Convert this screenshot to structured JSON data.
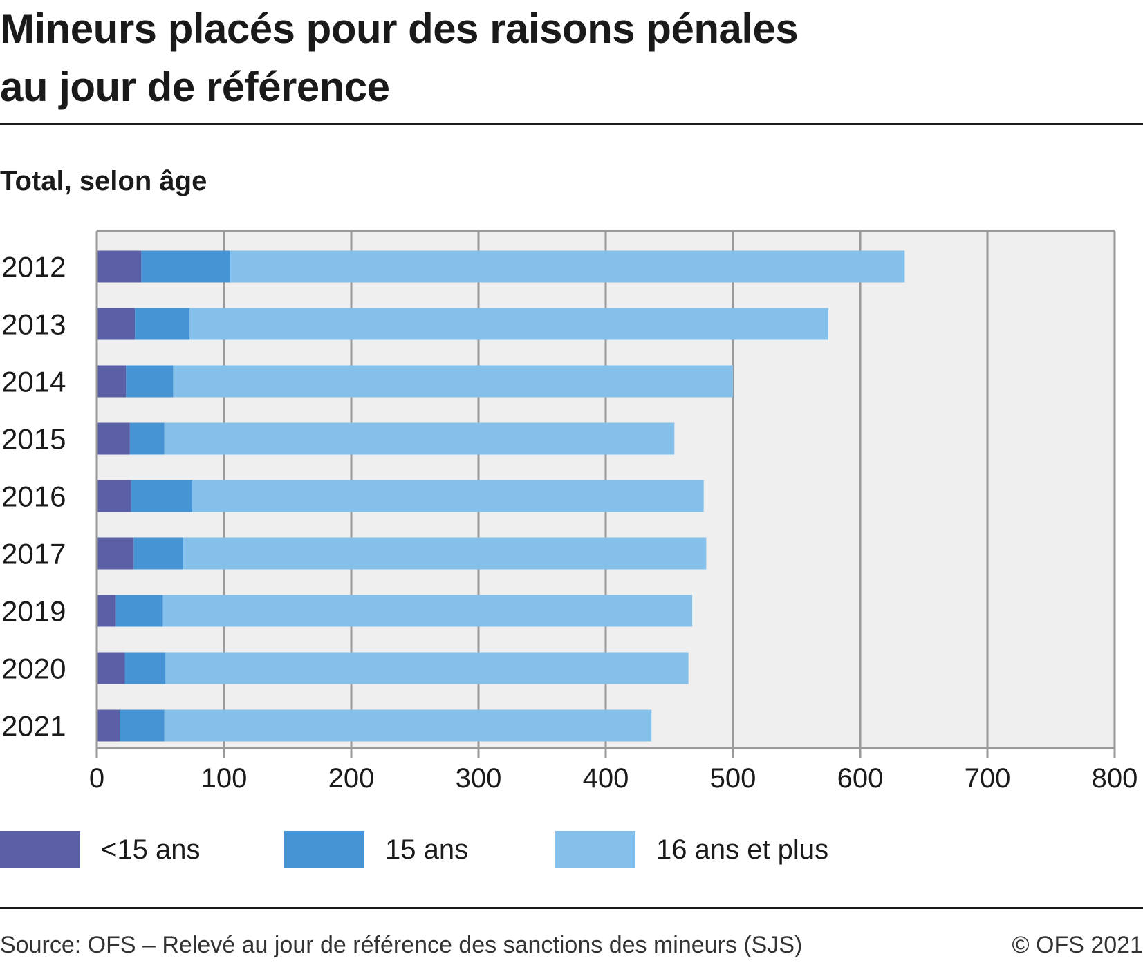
{
  "header": {
    "title_line1": "Mineurs placés pour des raisons pénales",
    "title_line2": "au jour de référence",
    "subtitle": "Total, selon âge"
  },
  "footer": {
    "source": "Source: OFS – Relevé au jour de référence des sanctions des mineurs (SJS)",
    "copyright": "© OFS 2021"
  },
  "chart_data": {
    "type": "bar",
    "orientation": "horizontal",
    "stacked": true,
    "title": "Mineurs placés pour des raisons pénales au jour de référence",
    "subtitle": "Total, selon âge",
    "xlabel": "",
    "ylabel": "",
    "xlim": [
      0,
      800
    ],
    "xticks": [
      0,
      100,
      200,
      300,
      400,
      500,
      600,
      700,
      800
    ],
    "grid": true,
    "legend_position": "bottom",
    "categories": [
      "2012",
      "2013",
      "2014",
      "2015",
      "2016",
      "2017",
      "2019",
      "2020",
      "2021"
    ],
    "series": [
      {
        "name": "<15 ans",
        "color": "#5b60a6",
        "values": [
          35,
          30,
          23,
          26,
          27,
          29,
          15,
          22,
          18
        ]
      },
      {
        "name": "15 ans",
        "color": "#4694d4",
        "values": [
          70,
          43,
          37,
          27,
          48,
          39,
          37,
          32,
          35
        ]
      },
      {
        "name": "16 ans et plus",
        "color": "#85c0ea",
        "values": [
          530,
          502,
          440,
          401,
          402,
          411,
          416,
          411,
          383
        ]
      }
    ]
  }
}
